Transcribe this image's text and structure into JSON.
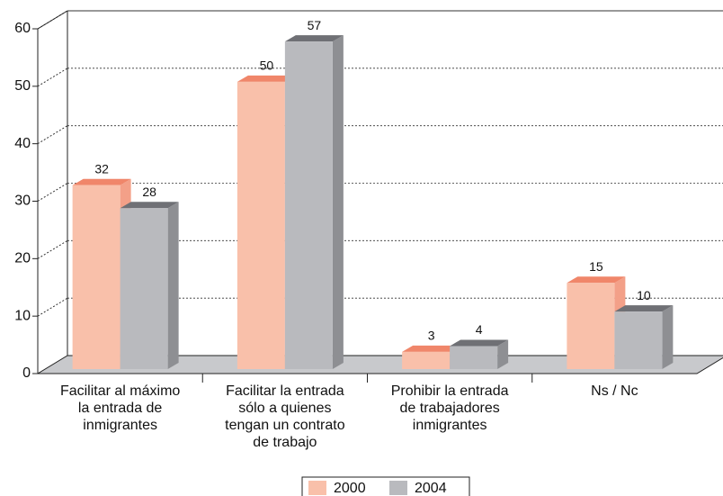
{
  "chart_data": {
    "type": "bar3d",
    "categories": [
      "Facilitar al máximo\nla entrada de\ninmigrantes",
      "Facilitar la entrada\nsólo a quienes\ntengan un contrato\nde trabajo",
      "Prohibir la entrada\nde trabajadores\ninmigrantes",
      "Ns / Nc"
    ],
    "series": [
      {
        "name": "2000",
        "color": "#f9c0aa",
        "top_color": "#f0866a",
        "side_color": "#f3a088",
        "values": [
          32,
          50,
          3,
          15
        ]
      },
      {
        "name": "2004",
        "color": "#b9babe",
        "top_color": "#6f7075",
        "side_color": "#8e8f93",
        "values": [
          28,
          57,
          4,
          10
        ]
      }
    ],
    "ylim": [
      0,
      60
    ],
    "yticks": [
      0,
      10,
      20,
      30,
      40,
      50,
      60
    ],
    "grid": true,
    "legend": "bottom"
  }
}
